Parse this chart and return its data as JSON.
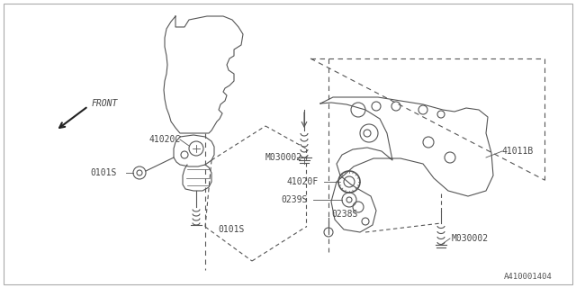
{
  "background_color": "#ffffff",
  "line_color": "#555555",
  "label_color": "#444444",
  "diagram_id": "A410001404",
  "labels": {
    "FRONT": "FRONT",
    "41020C": "41020C",
    "0101S_left": "0101S",
    "0101S_bottom": "0101S",
    "41011B": "41011B",
    "M030002_top": "M030002",
    "41020F": "41020F",
    "0239S": "0239S",
    "0238S": "0238S",
    "M030002_bot": "M030002"
  }
}
